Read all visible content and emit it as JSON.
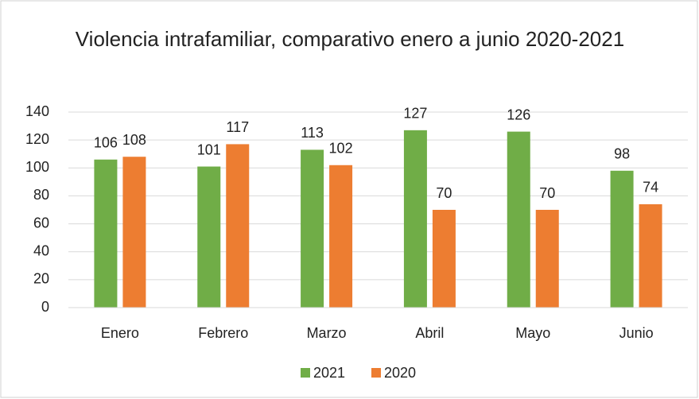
{
  "chart_data": {
    "type": "bar",
    "title": "Violencia intrafamiliar, comparativo enero a junio 2020-2021",
    "categories": [
      "Enero",
      "Febrero",
      "Marzo",
      "Abril",
      "Mayo",
      "Junio"
    ],
    "series": [
      {
        "name": "2021",
        "color": "#70ad47",
        "values": [
          106,
          101,
          113,
          127,
          126,
          98
        ]
      },
      {
        "name": "2020",
        "color": "#ed7d31",
        "values": [
          108,
          117,
          102,
          70,
          70,
          74
        ]
      }
    ],
    "ylim": [
      0,
      140
    ],
    "yticks": [
      0,
      20,
      40,
      60,
      80,
      100,
      120,
      140
    ],
    "grid": true,
    "legend": "bottom"
  }
}
